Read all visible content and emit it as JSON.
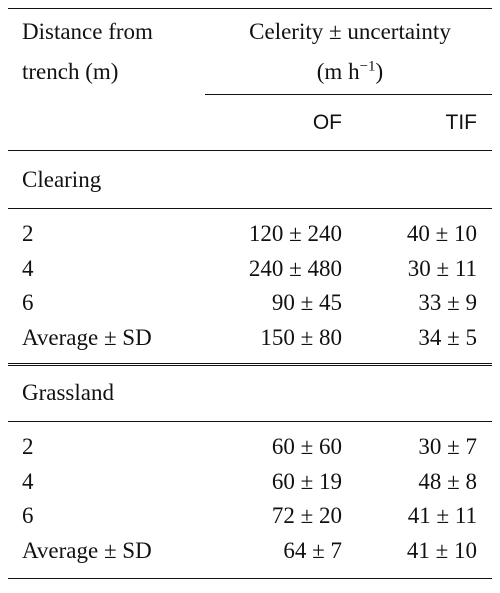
{
  "table": {
    "header": {
      "col1": [
        "Distance from",
        "trench (m)"
      ],
      "col2": {
        "line1": "Celerity ± uncertainty",
        "unit_base": "(m h",
        "unit_exp": "−1",
        "unit_close": ")"
      },
      "subheaders": [
        "OF",
        "TIF"
      ]
    },
    "sections": [
      {
        "title": "Clearing",
        "rows": [
          [
            "2",
            "120 ± 240",
            "40 ± 10"
          ],
          [
            "4",
            "240 ± 480",
            "30 ± 11"
          ],
          [
            "6",
            "90 ± 45",
            "33 ± 9"
          ],
          [
            "Average ± SD",
            "150 ± 80",
            "34 ± 5"
          ]
        ]
      },
      {
        "title": "Grassland",
        "rows": [
          [
            "2",
            "60 ± 60",
            "30 ± 7"
          ],
          [
            "4",
            "60 ± 19",
            "48 ± 8"
          ],
          [
            "6",
            "72 ± 20",
            "41 ± 11"
          ],
          [
            "Average ± SD",
            "64 ± 7",
            "41 ± 10"
          ]
        ]
      }
    ]
  }
}
